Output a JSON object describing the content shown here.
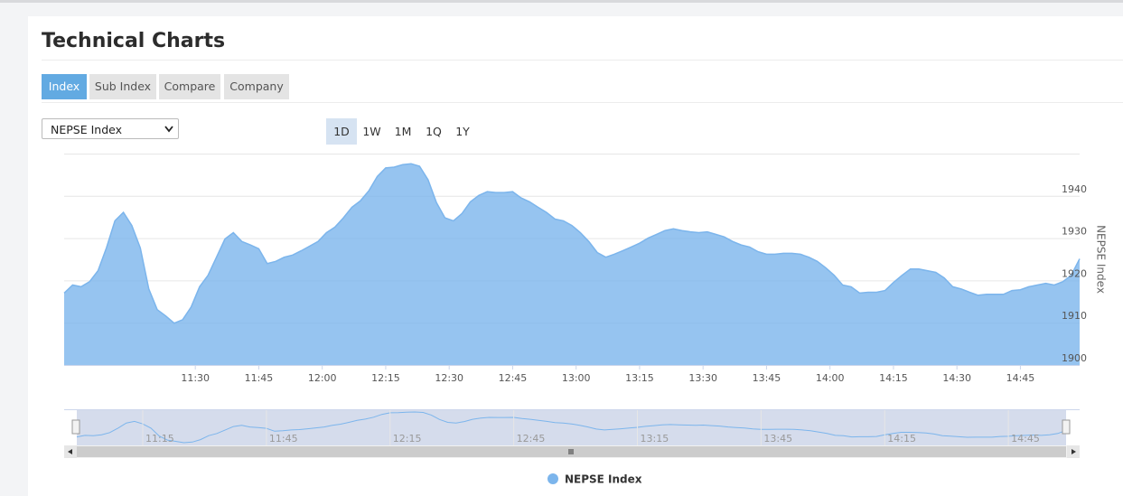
{
  "header": {
    "title": "Technical Charts"
  },
  "tabs": [
    "Index",
    "Sub Index",
    "Compare",
    "Company"
  ],
  "controls": {
    "select": "NEPSE Index",
    "ranges": [
      "1D",
      "1W",
      "1M",
      "1Q",
      "1Y"
    ]
  },
  "chart_data": {
    "type": "area",
    "y_label": "NEPSE Index",
    "x": [
      "10:59",
      "11:01",
      "11:03",
      "11:05",
      "11:07",
      "11:09",
      "11:11",
      "11:13",
      "11:15",
      "11:17",
      "11:19",
      "11:21",
      "11:23",
      "11:25",
      "11:27",
      "11:29",
      "11:31",
      "11:33",
      "11:35",
      "11:37",
      "11:39",
      "11:41",
      "11:43",
      "11:45",
      "11:47",
      "11:49",
      "11:51",
      "11:53",
      "11:55",
      "11:57",
      "11:59",
      "12:01",
      "12:03",
      "12:05",
      "12:07",
      "12:09",
      "12:11",
      "12:13",
      "12:15",
      "12:17",
      "12:19",
      "12:21",
      "12:23",
      "12:25",
      "12:27",
      "12:29",
      "12:31",
      "12:33",
      "12:35",
      "12:37",
      "12:39",
      "12:41",
      "12:43",
      "12:45",
      "12:47",
      "12:49",
      "12:51",
      "12:53",
      "12:55",
      "12:57",
      "12:59",
      "13:01",
      "13:03",
      "13:05",
      "13:07",
      "13:09",
      "13:11",
      "13:13",
      "13:15",
      "13:17",
      "13:19",
      "13:21",
      "13:23",
      "13:25",
      "13:27",
      "13:29",
      "13:31",
      "13:33",
      "13:35",
      "13:37",
      "13:39",
      "13:41",
      "13:43",
      "13:45",
      "13:47",
      "13:49",
      "13:51",
      "13:53",
      "13:55",
      "13:57",
      "13:59",
      "14:01",
      "14:03",
      "14:05",
      "14:07",
      "14:09",
      "14:11",
      "14:13",
      "14:15",
      "14:17",
      "14:19",
      "14:21",
      "14:23",
      "14:25",
      "14:27",
      "14:29",
      "14:31",
      "14:33",
      "14:35",
      "14:37",
      "14:39",
      "14:41",
      "14:43",
      "14:45",
      "14:47",
      "14:49",
      "14:51",
      "14:53",
      "14:55",
      "14:57",
      "14:59"
    ],
    "series": [
      {
        "name": "NEPSE Index",
        "color": "#7cb5ec",
        "values": [
          1917.0,
          1918.9,
          1918.5,
          1919.7,
          1922.3,
          1927.7,
          1934.1,
          1936.1,
          1933.0,
          1927.7,
          1918.0,
          1913.1,
          1911.6,
          1909.9,
          1910.7,
          1913.7,
          1918.5,
          1921.2,
          1925.5,
          1929.8,
          1931.3,
          1929.2,
          1928.4,
          1927.5,
          1924.0,
          1924.5,
          1925.5,
          1926.0,
          1927.0,
          1928.1,
          1929.2,
          1931.3,
          1932.6,
          1934.8,
          1937.3,
          1938.8,
          1941.2,
          1944.6,
          1946.6,
          1946.8,
          1947.4,
          1947.6,
          1947.0,
          1943.8,
          1938.4,
          1934.8,
          1934.1,
          1935.8,
          1938.6,
          1940.1,
          1941.0,
          1940.8,
          1940.8,
          1941.0,
          1939.5,
          1938.6,
          1937.3,
          1936.1,
          1934.5,
          1934.1,
          1933.0,
          1931.3,
          1929.2,
          1926.6,
          1925.5,
          1926.2,
          1927.0,
          1927.9,
          1928.8,
          1930.0,
          1930.9,
          1931.8,
          1932.2,
          1931.8,
          1931.5,
          1931.3,
          1931.5,
          1930.9,
          1930.3,
          1929.2,
          1928.4,
          1927.9,
          1926.8,
          1926.2,
          1926.2,
          1926.4,
          1926.4,
          1926.2,
          1925.5,
          1924.5,
          1923.0,
          1921.2,
          1918.9,
          1918.5,
          1917.0,
          1917.2,
          1917.2,
          1917.6,
          1919.5,
          1921.2,
          1922.7,
          1922.7,
          1922.3,
          1921.9,
          1920.6,
          1918.5,
          1918.0,
          1917.2,
          1916.5,
          1916.7,
          1916.7,
          1916.7,
          1917.6,
          1917.8,
          1918.5,
          1918.9,
          1919.3,
          1918.9,
          1919.7,
          1921.2,
          1925.1
        ]
      }
    ],
    "xlim": [
      "10:59",
      "14:59"
    ],
    "xticks": [
      "11:30",
      "11:45",
      "12:00",
      "12:15",
      "12:30",
      "12:45",
      "13:00",
      "13:15",
      "13:30",
      "13:45",
      "14:00",
      "14:15",
      "14:30",
      "14:45"
    ],
    "ylim": [
      1900,
      1950
    ],
    "yticks": [
      1900,
      1910,
      1920,
      1930,
      1940
    ],
    "grid": true,
    "navigator_xticks": [
      "11:15",
      "11:45",
      "12:15",
      "12:45",
      "13:15",
      "13:45",
      "14:15",
      "14:45"
    ]
  }
}
